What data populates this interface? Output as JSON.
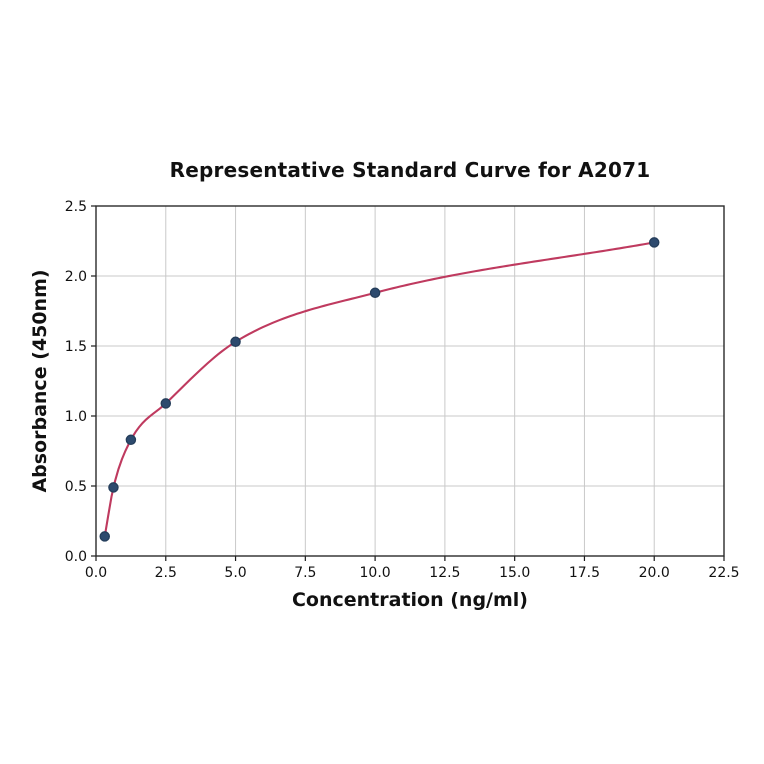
{
  "chart_data": {
    "type": "scatter",
    "title": "Representative Standard Curve for A2071",
    "xlabel": "Concentration (ng/ml)",
    "ylabel": "Absorbance (450nm)",
    "series": [
      {
        "name": "standards",
        "x": [
          0.313,
          0.625,
          1.25,
          2.5,
          5.0,
          10.0,
          20.0
        ],
        "y": [
          0.14,
          0.49,
          0.83,
          1.09,
          1.53,
          1.88,
          2.24
        ],
        "marker": "circle",
        "fit_curve": "smooth saturating fit through points"
      }
    ],
    "xlim": [
      0,
      22.5
    ],
    "ylim": [
      0,
      2.5
    ],
    "xticks": [
      0,
      2.5,
      5,
      7.5,
      10,
      12.5,
      15,
      17.5,
      20,
      22.5
    ],
    "xtick_labels": [
      "0.0",
      "2.5",
      "5.0",
      "7.5",
      "10.0",
      "12.5",
      "15.0",
      "17.5",
      "20.0",
      "22.5"
    ],
    "yticks": [
      0,
      0.5,
      1,
      1.5,
      2,
      2.5
    ],
    "ytick_labels": [
      "0.0",
      "0.5",
      "1.0",
      "1.5",
      "2.0",
      "2.5"
    ],
    "grid": true,
    "legend_position": "none",
    "colors": {
      "curve": "#bf3a5f",
      "marker_fill": "#2d4a6e",
      "marker_edge": "#243d5a",
      "grid": "#c9c9c9",
      "frame": "#2a2a2a",
      "tick": "#1a1a1a",
      "text": "#111111",
      "background": "#ffffff"
    }
  }
}
